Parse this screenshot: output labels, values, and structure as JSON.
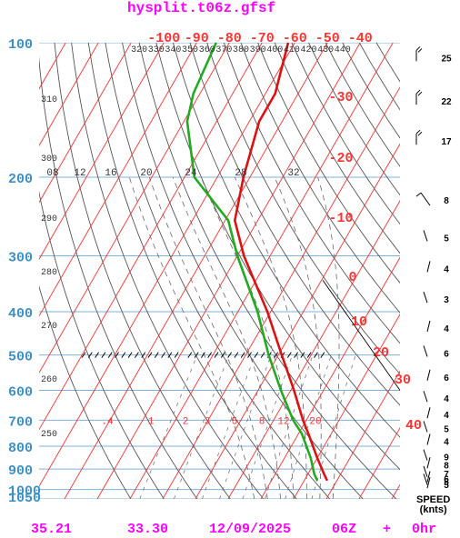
{
  "header": {
    "title": "hysplit.t06z.gfsf"
  },
  "footer": {
    "lat": "35.21",
    "lon": "33.30",
    "date": "12/09/2025",
    "cycle": "06Z",
    "plus": "+",
    "forecast": "0hr"
  },
  "speed_label": {
    "line1": "SPEED",
    "line2": "(knts)"
  },
  "colors": {
    "magenta": "#ff00ff",
    "pressure_blue": "#3d8fc4",
    "temp_red": "#ff3333",
    "temperature_line": "#dd1111",
    "dewpoint_line": "#22aa22",
    "isobar": "#7fb2d8",
    "isotherm": "#ee3333",
    "dry_adiabat": "#555555",
    "mixing_ratio": "#777777",
    "moist_adiabat": "#666666",
    "wind": "#000000"
  },
  "chart_data": {
    "type": "skew-t",
    "y_axis": {
      "label": "pressure (hPa)",
      "ticks": [
        100,
        200,
        300,
        400,
        500,
        600,
        700,
        800,
        900,
        1000,
        1050
      ]
    },
    "top_temperature_ticks": [
      -100,
      -90,
      -80,
      -70,
      -60,
      -50,
      -40
    ],
    "right_temperature_ticks": [
      -30,
      -20,
      -10,
      0,
      10,
      20,
      30,
      40
    ],
    "dry_adiabat_labels": [
      {
        "theta": 320,
        "text": "320"
      },
      {
        "theta": 330,
        "text": "330"
      },
      {
        "theta": 340,
        "text": "340"
      },
      {
        "theta": 350,
        "text": "350"
      },
      {
        "theta": 360,
        "text": "360"
      },
      {
        "theta": 370,
        "text": "370"
      },
      {
        "theta": 380,
        "text": "380"
      },
      {
        "theta": 390,
        "text": "390"
      },
      {
        "theta": 400,
        "text": "400"
      },
      {
        "theta": 410,
        "text": "410"
      },
      {
        "theta": 420,
        "text": "420"
      },
      {
        "theta": 430,
        "text": "430"
      },
      {
        "theta": 440,
        "text": "440"
      },
      {
        "theta": 310,
        "text": "310"
      },
      {
        "theta": 300,
        "text": "300"
      },
      {
        "theta": 290,
        "text": "290"
      },
      {
        "theta": 280,
        "text": "280"
      },
      {
        "theta": 270,
        "text": "270"
      },
      {
        "theta": 260,
        "text": "260"
      },
      {
        "theta": 250,
        "text": "250"
      }
    ],
    "moist_adiabat_labels": [
      "08",
      "12",
      "16",
      "20",
      "24",
      "28",
      "32"
    ],
    "mixing_ratio_labels": [
      ".4",
      "1",
      "2",
      "3",
      "5",
      "8",
      "12",
      "20"
    ],
    "temperature": {
      "pressure": [
        955,
        925,
        850,
        750,
        700,
        600,
        500,
        400,
        300,
        250,
        200,
        150,
        130,
        100
      ],
      "value": [
        27,
        25,
        20,
        13,
        9,
        1,
        -9,
        -21,
        -38,
        -47,
        -52,
        -57,
        -57,
        -62
      ]
    },
    "dewpoint": {
      "pressure": [
        955,
        925,
        850,
        750,
        700,
        600,
        500,
        400,
        300,
        250,
        200,
        150,
        130,
        100
      ],
      "value": [
        24,
        22,
        18,
        11,
        6,
        -3,
        -13,
        -24,
        -40,
        -49,
        -67,
        -79,
        -82,
        -84
      ]
    },
    "wind_speeds": [
      {
        "pressure": 108,
        "label": "25"
      },
      {
        "pressure": 135,
        "label": "22"
      },
      {
        "pressure": 166,
        "label": "17"
      },
      {
        "pressure": 225,
        "label": "8"
      },
      {
        "pressure": 273,
        "label": "5"
      },
      {
        "pressure": 320,
        "label": "4"
      },
      {
        "pressure": 375,
        "label": "3"
      },
      {
        "pressure": 435,
        "label": "4"
      },
      {
        "pressure": 495,
        "label": "6"
      },
      {
        "pressure": 560,
        "label": "6"
      },
      {
        "pressure": 625,
        "label": "4"
      },
      {
        "pressure": 680,
        "label": "4"
      },
      {
        "pressure": 730,
        "label": "5"
      },
      {
        "pressure": 780,
        "label": "4"
      },
      {
        "pressure": 845,
        "label": "9"
      },
      {
        "pressure": 880,
        "label": "8"
      },
      {
        "pressure": 920,
        "label": "7"
      },
      {
        "pressure": 945,
        "label": "6"
      },
      {
        "pressure": 958,
        "label": "5"
      },
      {
        "pressure": 975,
        "label": "5"
      }
    ]
  }
}
